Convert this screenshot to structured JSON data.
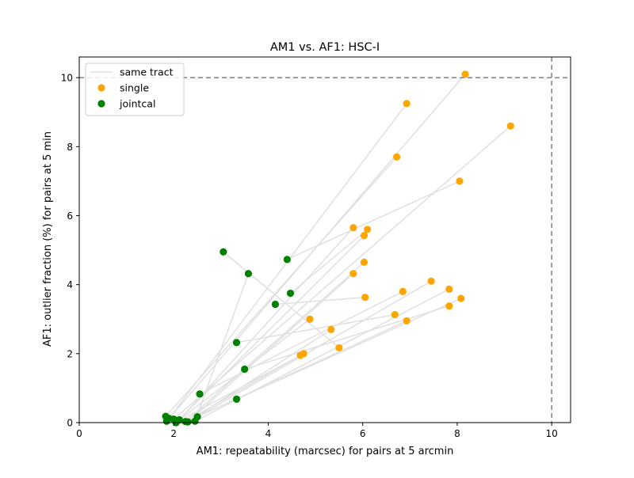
{
  "chart_data": {
    "type": "scatter",
    "title": "AM1 vs. AF1: HSC-I",
    "xlabel": "AM1: repeatability (marcsec) for pairs at 5 arcmin",
    "ylabel": "AF1: outlier fraction (%) for pairs at 5 min",
    "xlim": [
      0,
      10.4
    ],
    "ylim": [
      0,
      10.6
    ],
    "xticks": [
      "0",
      "2",
      "4",
      "6",
      "8",
      "10"
    ],
    "yticks": [
      "0",
      "2",
      "4",
      "6",
      "8",
      "10"
    ],
    "reference_lines": {
      "x": 10,
      "y": 10
    },
    "legend": {
      "placement": "top-left",
      "entries": [
        {
          "label": "same tract",
          "color": "#e0e0e0",
          "marker": "line"
        },
        {
          "label": "single",
          "color": "#ffa500",
          "marker": "circle"
        },
        {
          "label": "jointcal",
          "color": "#008000",
          "marker": "circle"
        }
      ]
    },
    "series": [
      {
        "name": "single",
        "color": "#ffa500",
        "points": [
          [
            8.17,
            10.1
          ],
          [
            6.93,
            9.25
          ],
          [
            9.13,
            8.6
          ],
          [
            6.72,
            7.7
          ],
          [
            8.05,
            7.0
          ],
          [
            5.8,
            5.65
          ],
          [
            6.1,
            5.6
          ],
          [
            6.03,
            5.42
          ],
          [
            6.03,
            4.65
          ],
          [
            5.8,
            4.32
          ],
          [
            7.45,
            4.1
          ],
          [
            7.83,
            3.87
          ],
          [
            6.85,
            3.8
          ],
          [
            6.05,
            3.63
          ],
          [
            8.08,
            3.6
          ],
          [
            7.83,
            3.38
          ],
          [
            6.68,
            3.13
          ],
          [
            6.93,
            2.95
          ],
          [
            4.88,
            3.0
          ],
          [
            5.33,
            2.7
          ],
          [
            5.5,
            2.17
          ],
          [
            4.75,
            2.0
          ],
          [
            4.68,
            1.95
          ]
        ]
      },
      {
        "name": "jointcal",
        "color": "#008000",
        "points": [
          [
            3.05,
            4.95
          ],
          [
            3.58,
            4.32
          ],
          [
            4.4,
            4.73
          ],
          [
            4.47,
            3.75
          ],
          [
            4.15,
            3.43
          ],
          [
            3.33,
            2.32
          ],
          [
            3.5,
            1.55
          ],
          [
            2.55,
            0.83
          ],
          [
            3.33,
            0.68
          ],
          [
            2.5,
            0.17
          ],
          [
            1.83,
            0.18
          ],
          [
            1.9,
            0.12
          ],
          [
            2.0,
            0.1
          ],
          [
            2.12,
            0.08
          ],
          [
            2.25,
            0.03
          ],
          [
            1.85,
            0.04
          ],
          [
            2.45,
            0.04
          ],
          [
            2.3,
            0.02
          ],
          [
            2.05,
            0.0
          ]
        ]
      }
    ],
    "same_tract_links": [
      [
        [
          8.17,
          10.1
        ],
        [
          1.85,
          0.04
        ]
      ],
      [
        [
          6.93,
          9.25
        ],
        [
          1.9,
          0.12
        ]
      ],
      [
        [
          9.13,
          8.6
        ],
        [
          2.0,
          0.1
        ]
      ],
      [
        [
          6.72,
          7.7
        ],
        [
          1.83,
          0.18
        ]
      ],
      [
        [
          8.05,
          7.0
        ],
        [
          4.4,
          4.73
        ]
      ],
      [
        [
          5.8,
          5.65
        ],
        [
          2.12,
          0.08
        ]
      ],
      [
        [
          6.1,
          5.6
        ],
        [
          4.47,
          3.75
        ]
      ],
      [
        [
          6.03,
          5.42
        ],
        [
          2.05,
          0.0
        ]
      ],
      [
        [
          6.03,
          4.65
        ],
        [
          2.25,
          0.03
        ]
      ],
      [
        [
          5.8,
          4.32
        ],
        [
          2.3,
          0.02
        ]
      ],
      [
        [
          7.45,
          4.1
        ],
        [
          2.5,
          0.17
        ]
      ],
      [
        [
          7.83,
          3.87
        ],
        [
          2.45,
          0.04
        ]
      ],
      [
        [
          6.85,
          3.8
        ],
        [
          2.55,
          0.83
        ]
      ],
      [
        [
          6.05,
          3.63
        ],
        [
          4.15,
          3.43
        ]
      ],
      [
        [
          8.08,
          3.6
        ],
        [
          3.33,
          0.68
        ]
      ],
      [
        [
          7.83,
          3.38
        ],
        [
          3.5,
          1.55
        ]
      ],
      [
        [
          6.68,
          3.13
        ],
        [
          3.33,
          2.32
        ]
      ],
      [
        [
          6.93,
          2.95
        ],
        [
          2.5,
          0.17
        ]
      ],
      [
        [
          4.88,
          3.0
        ],
        [
          2.12,
          0.08
        ]
      ],
      [
        [
          5.33,
          2.7
        ],
        [
          2.3,
          0.02
        ]
      ],
      [
        [
          5.5,
          2.17
        ],
        [
          3.05,
          4.95
        ]
      ],
      [
        [
          4.75,
          2.0
        ],
        [
          2.05,
          0.0
        ]
      ],
      [
        [
          4.68,
          1.95
        ],
        [
          2.25,
          0.03
        ]
      ],
      [
        [
          3.58,
          4.32
        ],
        [
          2.45,
          0.04
        ]
      ]
    ]
  }
}
